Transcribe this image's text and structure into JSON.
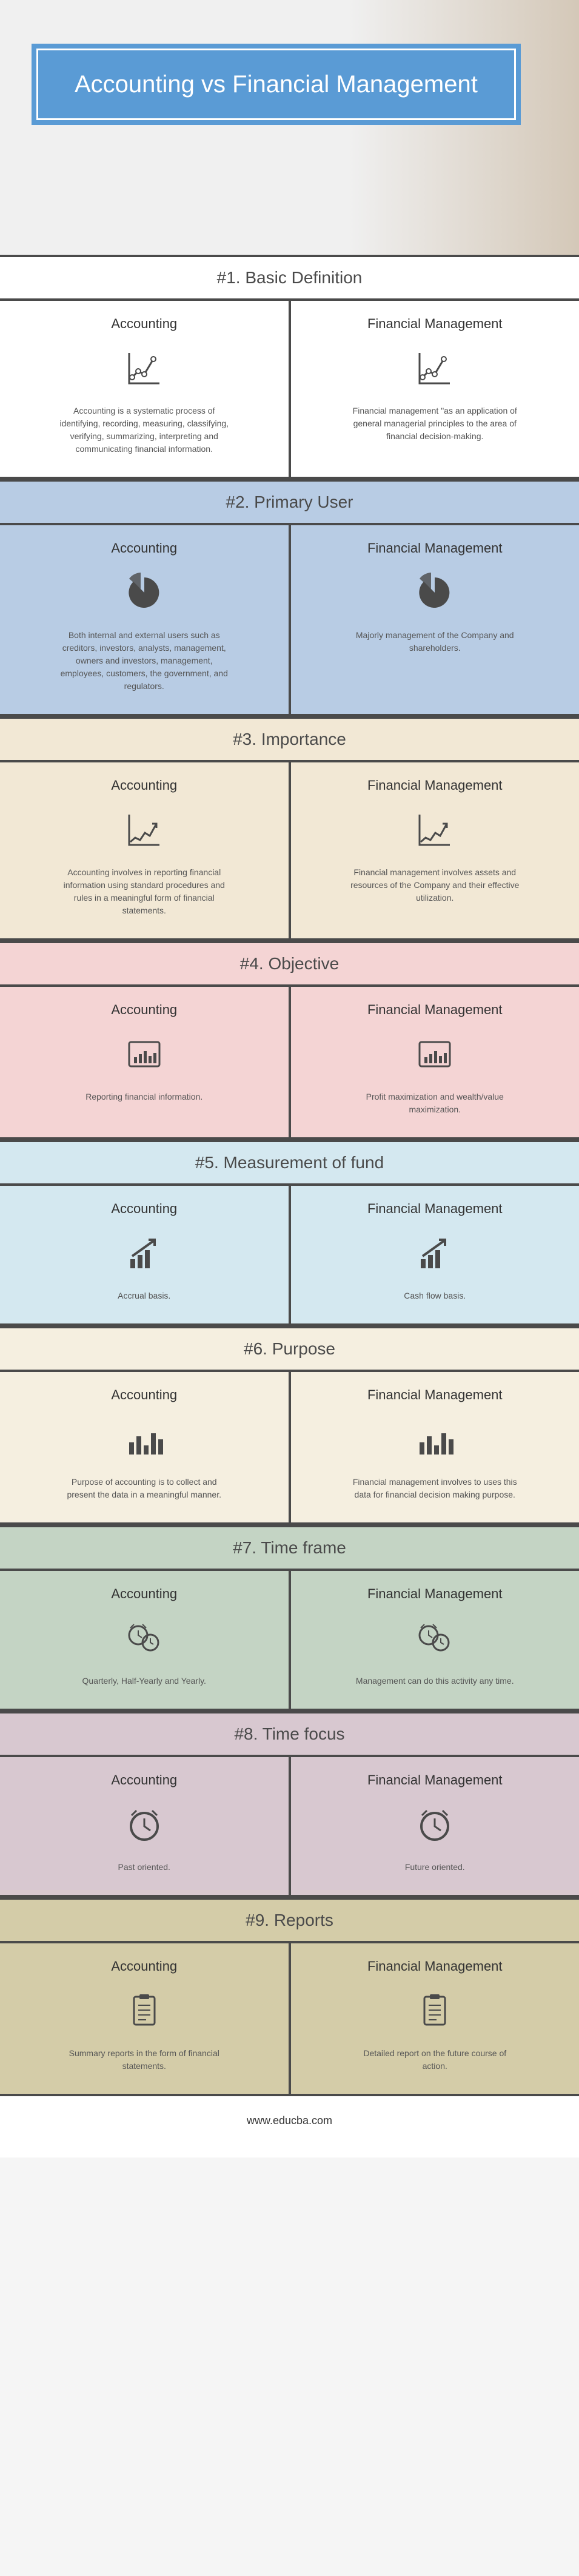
{
  "title": "Accounting vs Financial Management",
  "footer": "www.educba.com",
  "colors": {
    "header_bg": "#5a9bd5",
    "divider": "#4a4a4a",
    "bg_white": "#ffffff",
    "bg_blue": "#b8cce4",
    "bg_tan": "#f2e8d5",
    "bg_pink": "#f4d4d4",
    "bg_lightblue": "#d4e8f0",
    "bg_cream": "#f5efe0",
    "bg_sage": "#c4d4c4",
    "bg_mauve": "#d8c8d0",
    "bg_khaki": "#d4cca8",
    "icon_color": "#4a4a4a"
  },
  "sections": [
    {
      "num": "#1.",
      "name": "Basic Definition",
      "bg": "bg-white",
      "icon": "line-chart",
      "left_title": "Accounting",
      "left_text": "Accounting is a systematic process of identifying, recording, measuring, classifying, verifying, summarizing, interpreting and communicating financial information.",
      "right_title": "Financial Management",
      "right_text": "Financial management \"as an application of general managerial principles to the area of financial decision-making."
    },
    {
      "num": "#2.",
      "name": "Primary User",
      "bg": "bg-blue",
      "icon": "pie-chart",
      "left_title": "Accounting",
      "left_text": "Both internal and external users such as creditors, investors, analysts, management, owners and investors, management, employees, customers, the government, and regulators.",
      "right_title": "Financial Management",
      "right_text": "Majorly management of the Company and shareholders."
    },
    {
      "num": "#3.",
      "name": "Importance",
      "bg": "bg-tan",
      "icon": "trend-line",
      "left_title": "Accounting",
      "left_text": "Accounting involves in reporting financial information using standard procedures and rules in a meaningful form of financial statements.",
      "right_title": "Financial Management",
      "right_text": "Financial management involves assets and resources of the Company and their effective utilization."
    },
    {
      "num": "#4.",
      "name": "Objective",
      "bg": "bg-pink",
      "icon": "bar-box",
      "left_title": "Accounting",
      "left_text": "Reporting financial information.",
      "right_title": "Financial Management",
      "right_text": "Profit maximization and wealth/value maximization."
    },
    {
      "num": "#5.",
      "name": "Measurement of fund",
      "bg": "bg-lightblue",
      "icon": "growth-arrow",
      "left_title": "Accounting",
      "left_text": "Accrual basis.",
      "right_title": "Financial Management",
      "right_text": "Cash flow basis."
    },
    {
      "num": "#6.",
      "name": "Purpose",
      "bg": "bg-cream",
      "icon": "bars",
      "left_title": "Accounting",
      "left_text": "Purpose of accounting is to collect and present the data in a meaningful manner.",
      "right_title": "Financial Management",
      "right_text": "Financial management involves to uses this data for financial decision making purpose."
    },
    {
      "num": "#7.",
      "name": "Time frame",
      "bg": "bg-sage",
      "icon": "clocks",
      "left_title": "Accounting",
      "left_text": "Quarterly, Half-Yearly and Yearly.",
      "right_title": "Financial Management",
      "right_text": "Management can do this activity any time."
    },
    {
      "num": "#8.",
      "name": "Time focus",
      "bg": "bg-mauve",
      "icon": "clock",
      "left_title": "Accounting",
      "left_text": "Past oriented.",
      "right_title": "Financial Management",
      "right_text": "Future oriented."
    },
    {
      "num": "#9.",
      "name": "Reports",
      "bg": "bg-khaki",
      "icon": "clipboard",
      "left_title": "Accounting",
      "left_text": "Summary reports in the form of financial statements.",
      "right_title": "Financial Management",
      "right_text": "Detailed report on the future course of action."
    }
  ]
}
